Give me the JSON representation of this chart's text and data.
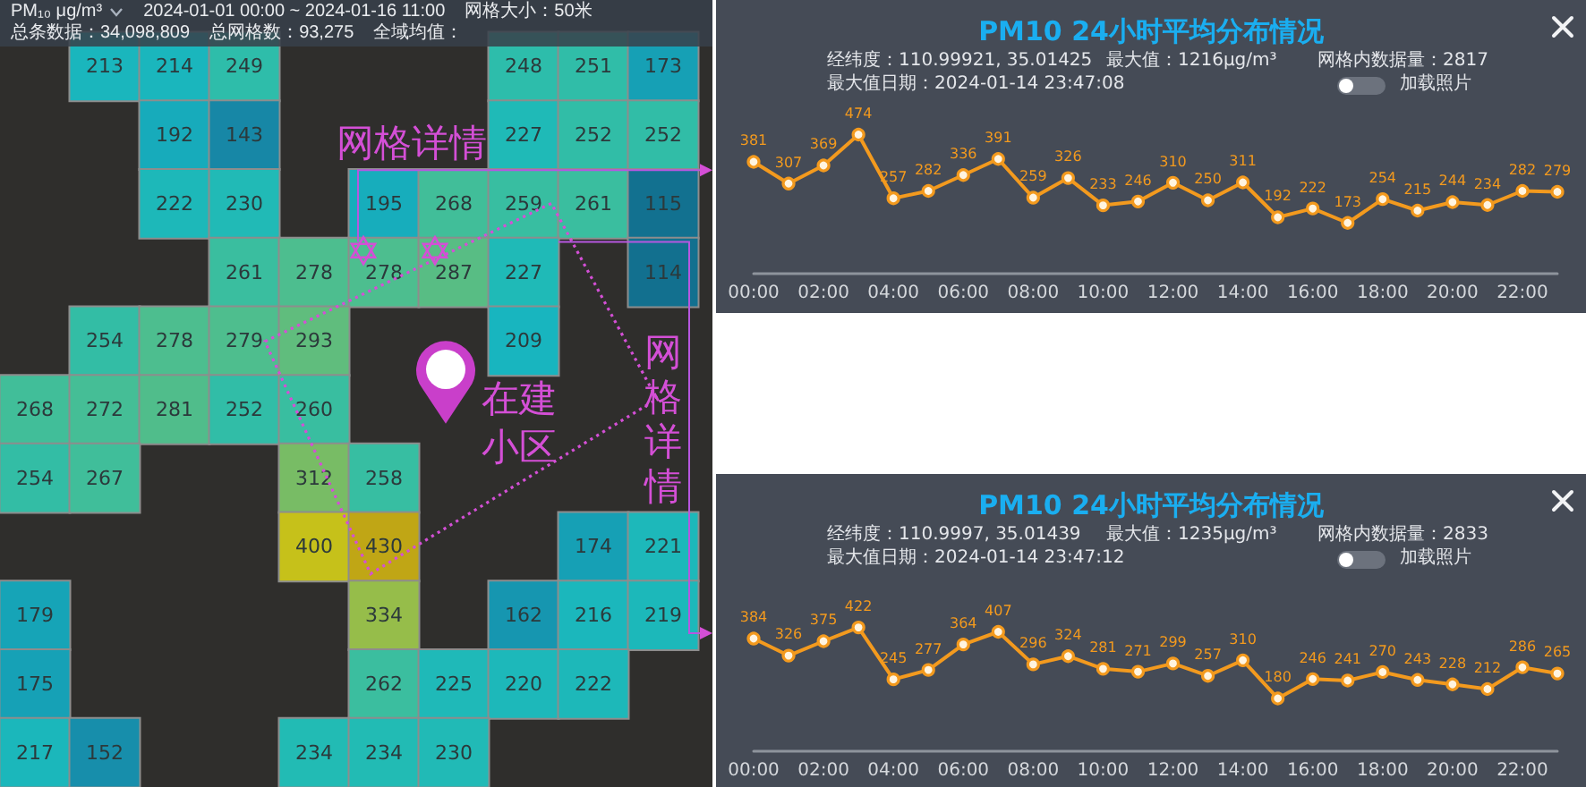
{
  "chart_data": [
    {
      "type": "other",
      "values": [
        213,
        214,
        249,
        248,
        251,
        173,
        192,
        143,
        227,
        252,
        252,
        222,
        230,
        195,
        268,
        259,
        261,
        115,
        261,
        278,
        278,
        287,
        227,
        114,
        254,
        278,
        279,
        293,
        209,
        268,
        272,
        281,
        252,
        260,
        254,
        267,
        312,
        258,
        400,
        430,
        174,
        221,
        179,
        334,
        162,
        216,
        219,
        175,
        262,
        225,
        220,
        222,
        217,
        152,
        234,
        234,
        230
      ],
      "data_labels": true,
      "annotations": [
        "网格详情",
        "在建小区",
        "网格详情",
        "PM₁₀ μg/m³",
        "2024-01-01 00:00 ~ 2024-01-16 11:00",
        "网格大小：50米",
        "总条数据：34,098,809",
        "总网格数：93,275",
        "全域均值："
      ]
    },
    {
      "type": "line",
      "title": "PM10 24小时平均分布情况",
      "annotations": [
        "经纬度：110.99921, 35.01425",
        "最大值：1216μg/m³",
        "网格内数据量：2817",
        "最大值日期：2024-01-14 23:47:08",
        "加载照片"
      ],
      "categories": [
        "00:00",
        null,
        "02:00",
        null,
        "04:00",
        null,
        "06:00",
        null,
        "08:00",
        null,
        "10:00",
        null,
        "12:00",
        null,
        "14:00",
        null,
        "16:00",
        null,
        "18:00",
        null,
        "20:00",
        null,
        "22:00",
        null
      ],
      "values": [
        381,
        307,
        369,
        474,
        257,
        282,
        336,
        391,
        259,
        326,
        233,
        246,
        310,
        250,
        311,
        192,
        222,
        173,
        254,
        215,
        244,
        234,
        282,
        279
      ],
      "color": "#f39a1e",
      "marker": "circle",
      "data_labels": true,
      "tick_labels": "x"
    },
    {
      "type": "line",
      "title": "PM10 24小时平均分布情况",
      "annotations": [
        "经纬度：110.9997, 35.01439",
        "最大值：1235μg/m³",
        "网格内数据量：2833",
        "最大值日期：2024-01-14 23:47:12",
        "加载照片"
      ],
      "categories": [
        "00:00",
        null,
        "02:00",
        null,
        "04:00",
        null,
        "06:00",
        null,
        "08:00",
        null,
        "10:00",
        null,
        "12:00",
        null,
        "14:00",
        null,
        "16:00",
        null,
        "18:00",
        null,
        "20:00",
        null,
        "22:00",
        null
      ],
      "values": [
        384,
        326,
        375,
        422,
        245,
        277,
        364,
        407,
        296,
        324,
        281,
        271,
        299,
        257,
        310,
        180,
        246,
        241,
        270,
        243,
        228,
        212,
        286,
        265
      ],
      "color": "#f39a1e",
      "marker": "circle",
      "data_labels": true,
      "tick_labels": "x"
    }
  ]
}
